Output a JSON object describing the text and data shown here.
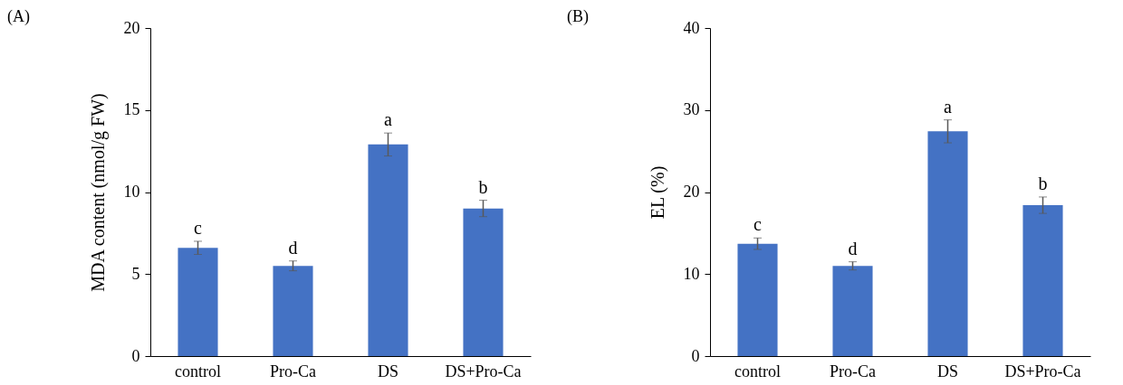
{
  "chart_data": [
    {
      "type": "bar",
      "title": "(A)",
      "ylabel": "MDA content (nmol/g FW)",
      "categories": [
        "control",
        "Pro-Ca",
        "DS",
        "DS+Pro-Ca"
      ],
      "values": [
        6.6,
        5.5,
        12.9,
        9.0
      ],
      "errors": [
        0.4,
        0.3,
        0.7,
        0.5
      ],
      "color": "#4472c4",
      "ylim": [
        0,
        20
      ],
      "yticks": [
        0,
        5,
        10,
        15,
        20
      ],
      "grid": false,
      "annotations": [
        {
          "text": "c",
          "x": "control",
          "y": 6.6
        },
        {
          "text": "d",
          "x": "Pro-Ca",
          "y": 5.5
        },
        {
          "text": "a",
          "x": "DS",
          "y": 12.9
        },
        {
          "text": "b",
          "x": "DS+Pro-Ca",
          "y": 9.0
        }
      ]
    },
    {
      "type": "bar",
      "title": "(B)",
      "ylabel": "EL (%)",
      "categories": [
        "control",
        "Pro-Ca",
        "DS",
        "DS+Pro-Ca"
      ],
      "values": [
        13.7,
        11.0,
        27.4,
        18.4
      ],
      "errors": [
        0.7,
        0.5,
        1.4,
        1.0
      ],
      "color": "#4472c4",
      "ylim": [
        0,
        40
      ],
      "yticks": [
        0,
        10,
        20,
        30,
        40
      ],
      "grid": false,
      "annotations": [
        {
          "text": "c",
          "x": "control",
          "y": 13.7
        },
        {
          "text": "d",
          "x": "Pro-Ca",
          "y": 11.0
        },
        {
          "text": "a",
          "x": "DS",
          "y": 27.4
        },
        {
          "text": "b",
          "x": "DS+Pro-Ca",
          "y": 18.4
        }
      ]
    }
  ]
}
